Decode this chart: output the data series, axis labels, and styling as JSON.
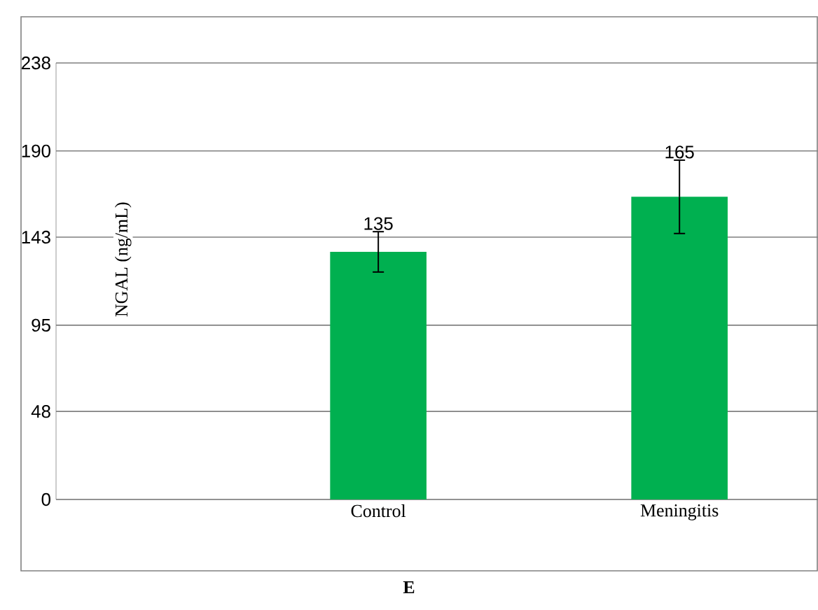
{
  "chart_data": {
    "type": "bar",
    "categories": [
      "Control",
      "Meningitis"
    ],
    "values": [
      135,
      165
    ],
    "errors": [
      11,
      20
    ],
    "color": "#00b050",
    "ylabel": "NGAL (ng/mL)",
    "ylim": [
      0,
      238
    ],
    "yticks": [
      0,
      48,
      95,
      143,
      190,
      238
    ],
    "grid": "y",
    "data_labels": true,
    "annotations": [
      "E"
    ]
  }
}
